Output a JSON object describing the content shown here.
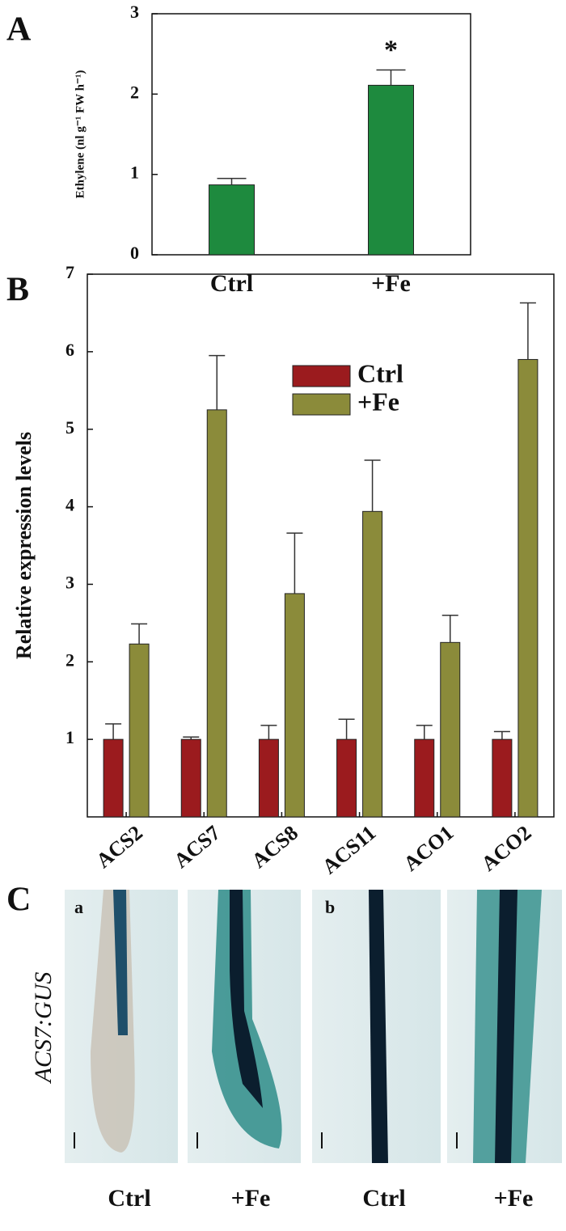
{
  "chart_data": [
    {
      "type": "bar",
      "panel_label": "A",
      "y_label": "Ethylene (nl g⁻¹ FW h⁻¹)",
      "categories": [
        "Ctrl",
        "+Fe"
      ],
      "values": [
        0.87,
        2.11
      ],
      "errors": [
        0.08,
        0.19
      ],
      "color": "#1e8a3e",
      "annotation": "*",
      "ylim": [
        0,
        3
      ],
      "yticks": [
        0,
        1,
        2,
        3
      ]
    },
    {
      "type": "bar",
      "panel_label": "B",
      "y_label": "Relative expression levels",
      "categories": [
        "ACS2",
        "ACS7",
        "ACS8",
        "ACS11",
        "ACO1",
        "ACO2"
      ],
      "series": [
        {
          "name": "Ctrl",
          "color": "#9b1b1e",
          "values": [
            1,
            1,
            1,
            1,
            1,
            1
          ],
          "errors": [
            0.2,
            0.03,
            0.18,
            0.26,
            0.18,
            0.1
          ]
        },
        {
          "name": "+Fe",
          "color": "#8b8b3a",
          "values": [
            2.23,
            5.25,
            2.88,
            3.94,
            2.25,
            5.9
          ],
          "errors": [
            0.26,
            0.7,
            0.78,
            0.66,
            0.35,
            0.73
          ]
        }
      ],
      "ylim": [
        0,
        7
      ],
      "yticks": [
        1,
        2,
        3,
        4,
        5,
        6,
        7
      ]
    }
  ],
  "panel_c": {
    "label": "C",
    "reporter": "ACS7:GUS",
    "subpanels": [
      "a",
      "b"
    ],
    "captions": [
      "Ctrl",
      "+Fe",
      "Ctrl",
      "+Fe"
    ]
  }
}
